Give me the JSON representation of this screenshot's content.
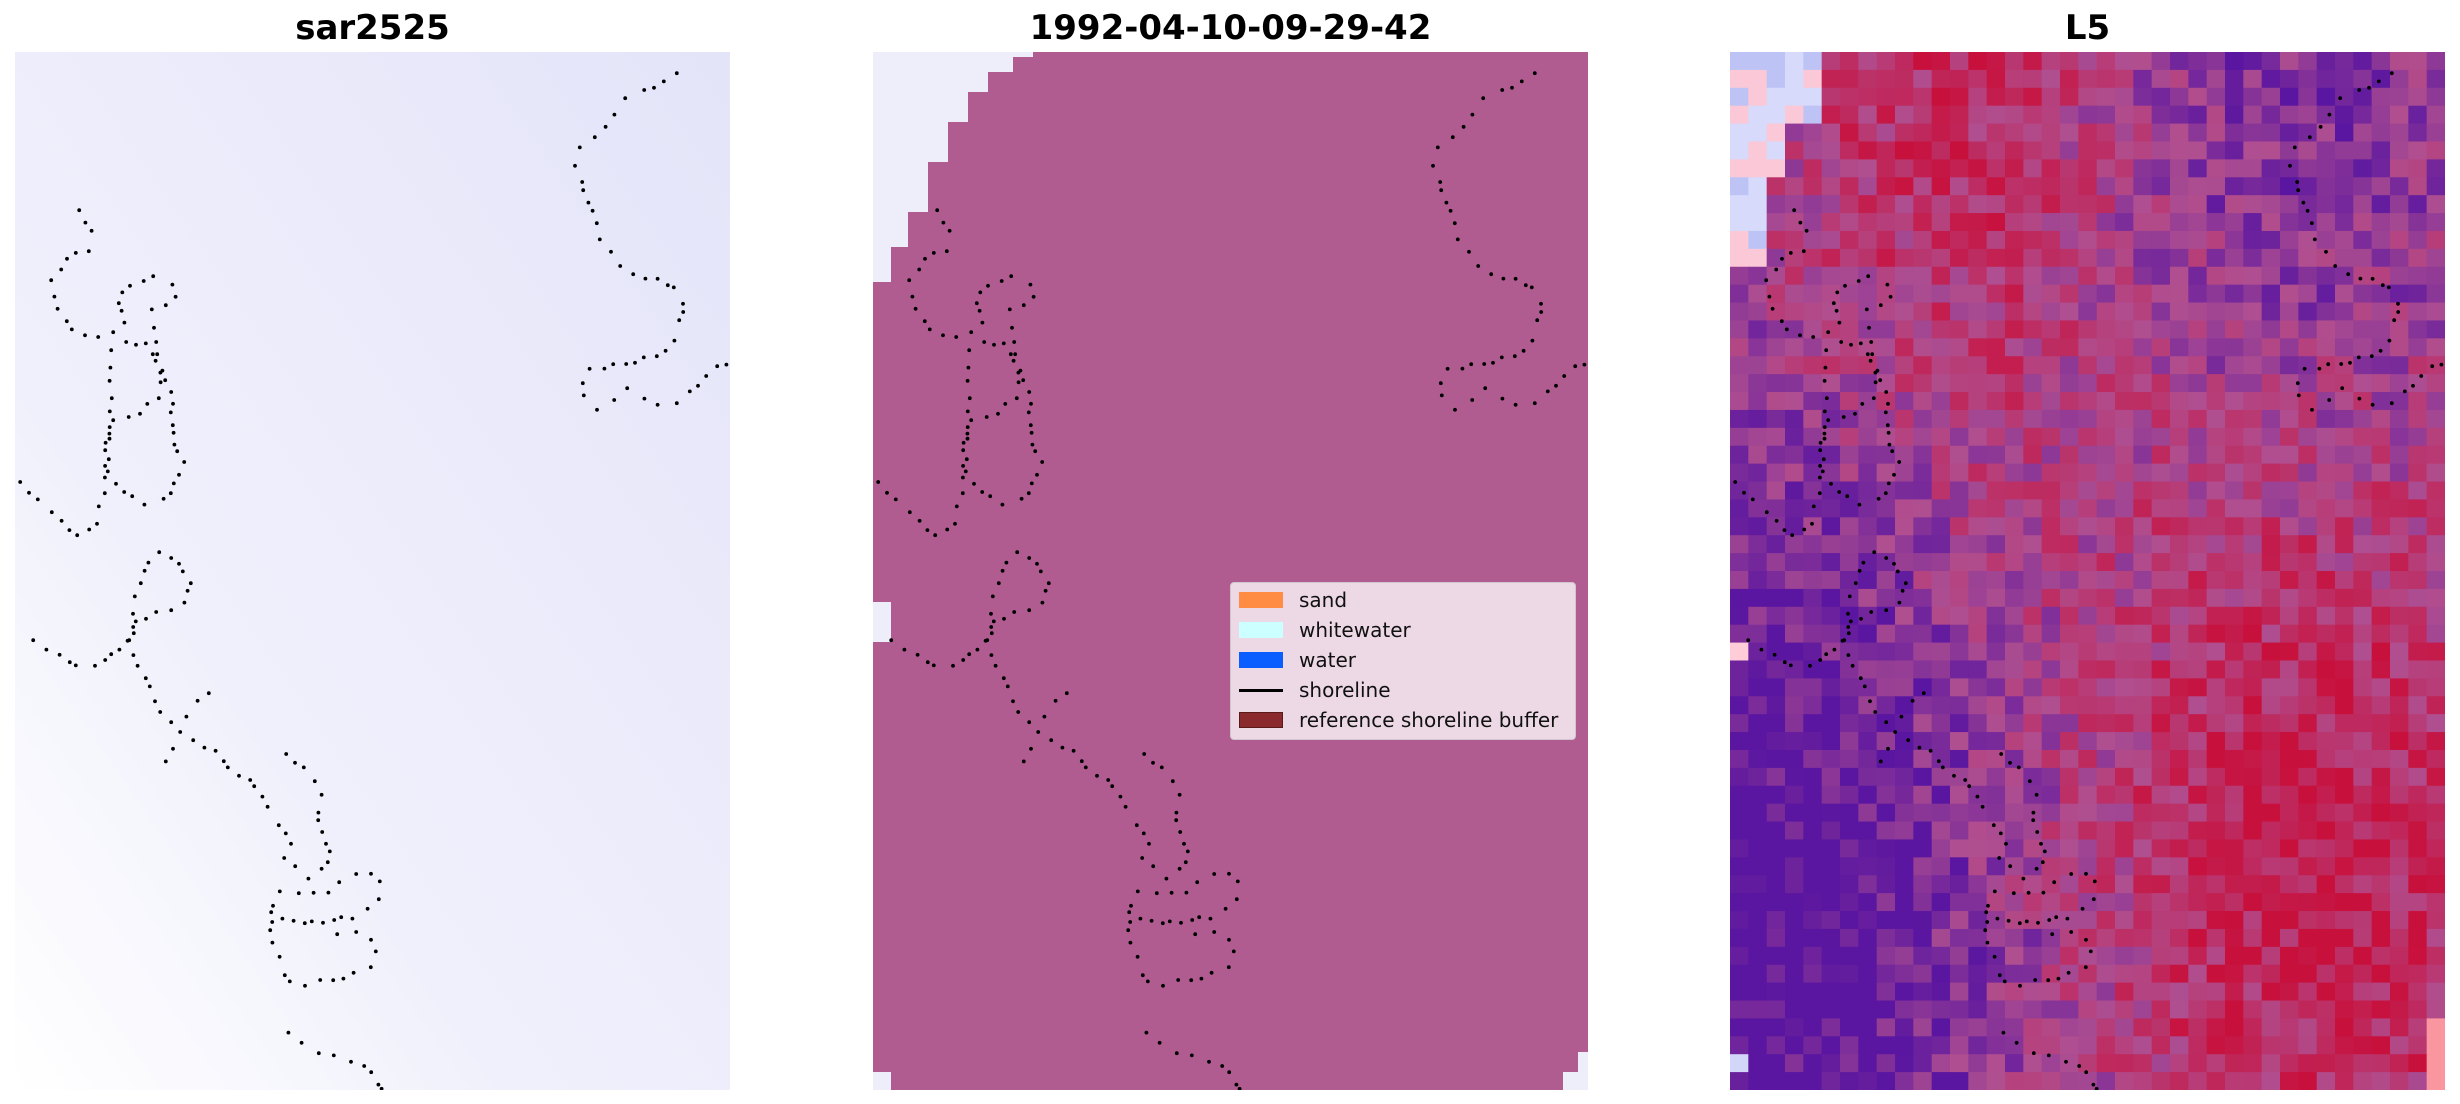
{
  "panels": [
    {
      "title": "sar2525"
    },
    {
      "title": "1992-04-10-09-29-42"
    },
    {
      "title": "L5"
    }
  ],
  "legend": {
    "items": [
      {
        "label": "sand",
        "color": "#ff8c42",
        "kind": "patch"
      },
      {
        "label": "whitewater",
        "color": "#ccffff",
        "kind": "patch"
      },
      {
        "label": "water",
        "color": "#0a5eff",
        "kind": "patch"
      },
      {
        "label": "shoreline",
        "color": "#000000",
        "kind": "line"
      },
      {
        "label": "reference shoreline buffer",
        "color": "#8b2a2e",
        "kind": "patch"
      }
    ]
  },
  "colors": {
    "sar_tint": "#e8e8fb",
    "classified_fill": "#b05c91",
    "classified_nodata": "#eeeefa",
    "ndwi_red": "#c8103c",
    "ndwi_purple": "#5a16a0",
    "ndwi_mid": "#b04f90",
    "shoreline": "#000000"
  }
}
